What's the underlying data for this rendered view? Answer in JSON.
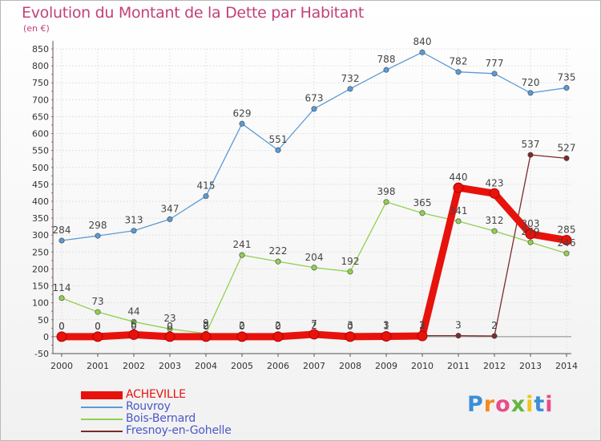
{
  "chart_data": {
    "type": "line",
    "title": "Evolution du Montant de la Dette par Habitant",
    "subtitle": "(en €)",
    "x": [
      "2000",
      "2001",
      "2002",
      "2003",
      "2004",
      "2005",
      "2006",
      "2007",
      "2008",
      "2009",
      "2010",
      "2011",
      "2012",
      "2013",
      "2014"
    ],
    "ylim": [
      -50,
      850
    ],
    "yticks": [
      -50,
      0,
      50,
      100,
      150,
      200,
      250,
      300,
      350,
      400,
      450,
      500,
      550,
      600,
      650,
      700,
      750,
      800,
      850
    ],
    "grid": true,
    "legend_position": "bottom-left",
    "series": [
      {
        "name": "Rouvroy",
        "color": "#5b9bd5",
        "values": [
          284,
          298,
          313,
          347,
          415,
          629,
          551,
          673,
          732,
          788,
          840,
          782,
          777,
          720,
          735
        ],
        "labels": [
          "284",
          "298",
          "313",
          "347",
          "415",
          "629",
          "551",
          "673",
          "732",
          "788",
          "840",
          "782",
          "777",
          "720",
          "735"
        ]
      },
      {
        "name": "Bois-Bernard",
        "color": "#92d050",
        "values": [
          114,
          73,
          44,
          23,
          9,
          241,
          222,
          204,
          192,
          398,
          365,
          341,
          312,
          279,
          246
        ],
        "labels": [
          "114",
          "73",
          "44",
          "23",
          "9",
          "241",
          "222",
          "204",
          "192",
          "398",
          "365",
          "341",
          "312",
          "279",
          "246"
        ]
      },
      {
        "name": "Fresnoy-en-Gohelle",
        "color": "#7b2b2b",
        "values": [
          0,
          0,
          0,
          0,
          2,
          2,
          2,
          2,
          3,
          3,
          3,
          3,
          2,
          537,
          527
        ],
        "labels": [
          "0",
          "0",
          "0",
          "0",
          "2",
          "2",
          "2",
          "2",
          "3",
          "3",
          "3",
          "3",
          "2",
          "537",
          "527"
        ]
      },
      {
        "name": "ACHEVILLE",
        "color": "#e8120c",
        "values": [
          0,
          0,
          6,
          0,
          0,
          0,
          0,
          7,
          0,
          1,
          2,
          440,
          423,
          303,
          285
        ],
        "labels": [
          "0",
          "0",
          "6",
          "0",
          "0",
          "0",
          "0",
          "7",
          "0",
          "1",
          "2",
          "440",
          "423",
          "303",
          "285"
        ]
      }
    ]
  },
  "legend": {
    "items": [
      "ACHEVILLE",
      "Rouvroy",
      "Bois-Bernard",
      "Fresnoy-en-Gohelle"
    ]
  },
  "logo": {
    "text": "Proxiti",
    "colors": [
      "#3a8fd8",
      "#f28a1e",
      "#e84c8b",
      "#63b543",
      "#f0c419",
      "#3a8fd8",
      "#e84c8b"
    ]
  }
}
